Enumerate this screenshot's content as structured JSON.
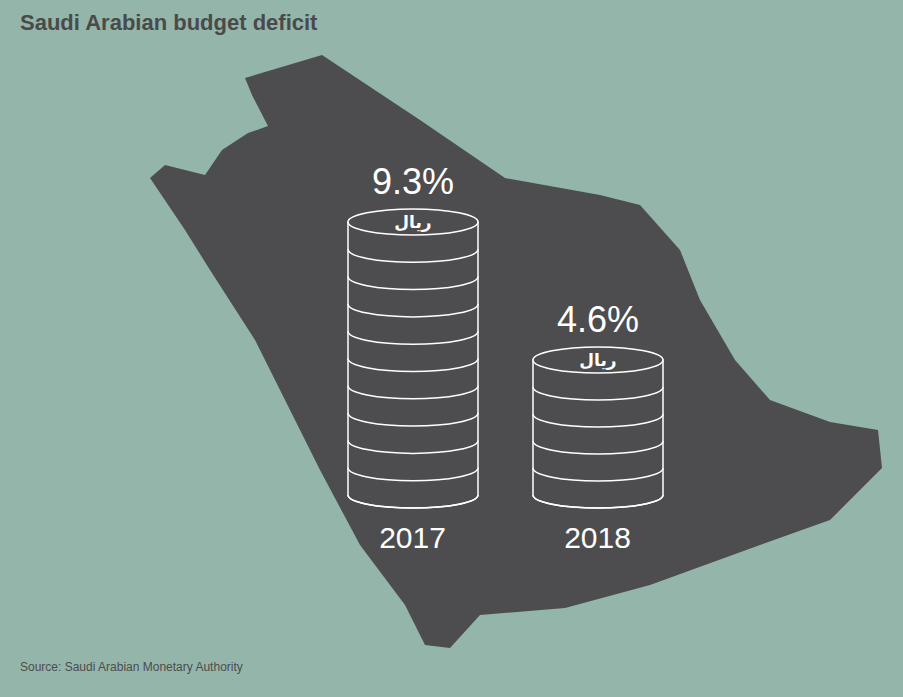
{
  "chart_data": {
    "type": "bar",
    "title": "Saudi Arabian budget deficit",
    "categories": [
      "2017",
      "2018"
    ],
    "values": [
      9.3,
      4.6
    ],
    "value_labels": [
      "9.3%",
      "4.6%"
    ],
    "data_labels": true,
    "coin_label": "ريال",
    "color": "#4d4d4f",
    "tick_labels": "x",
    "source": "Source: Saudi Arabian Monetary Authority"
  }
}
